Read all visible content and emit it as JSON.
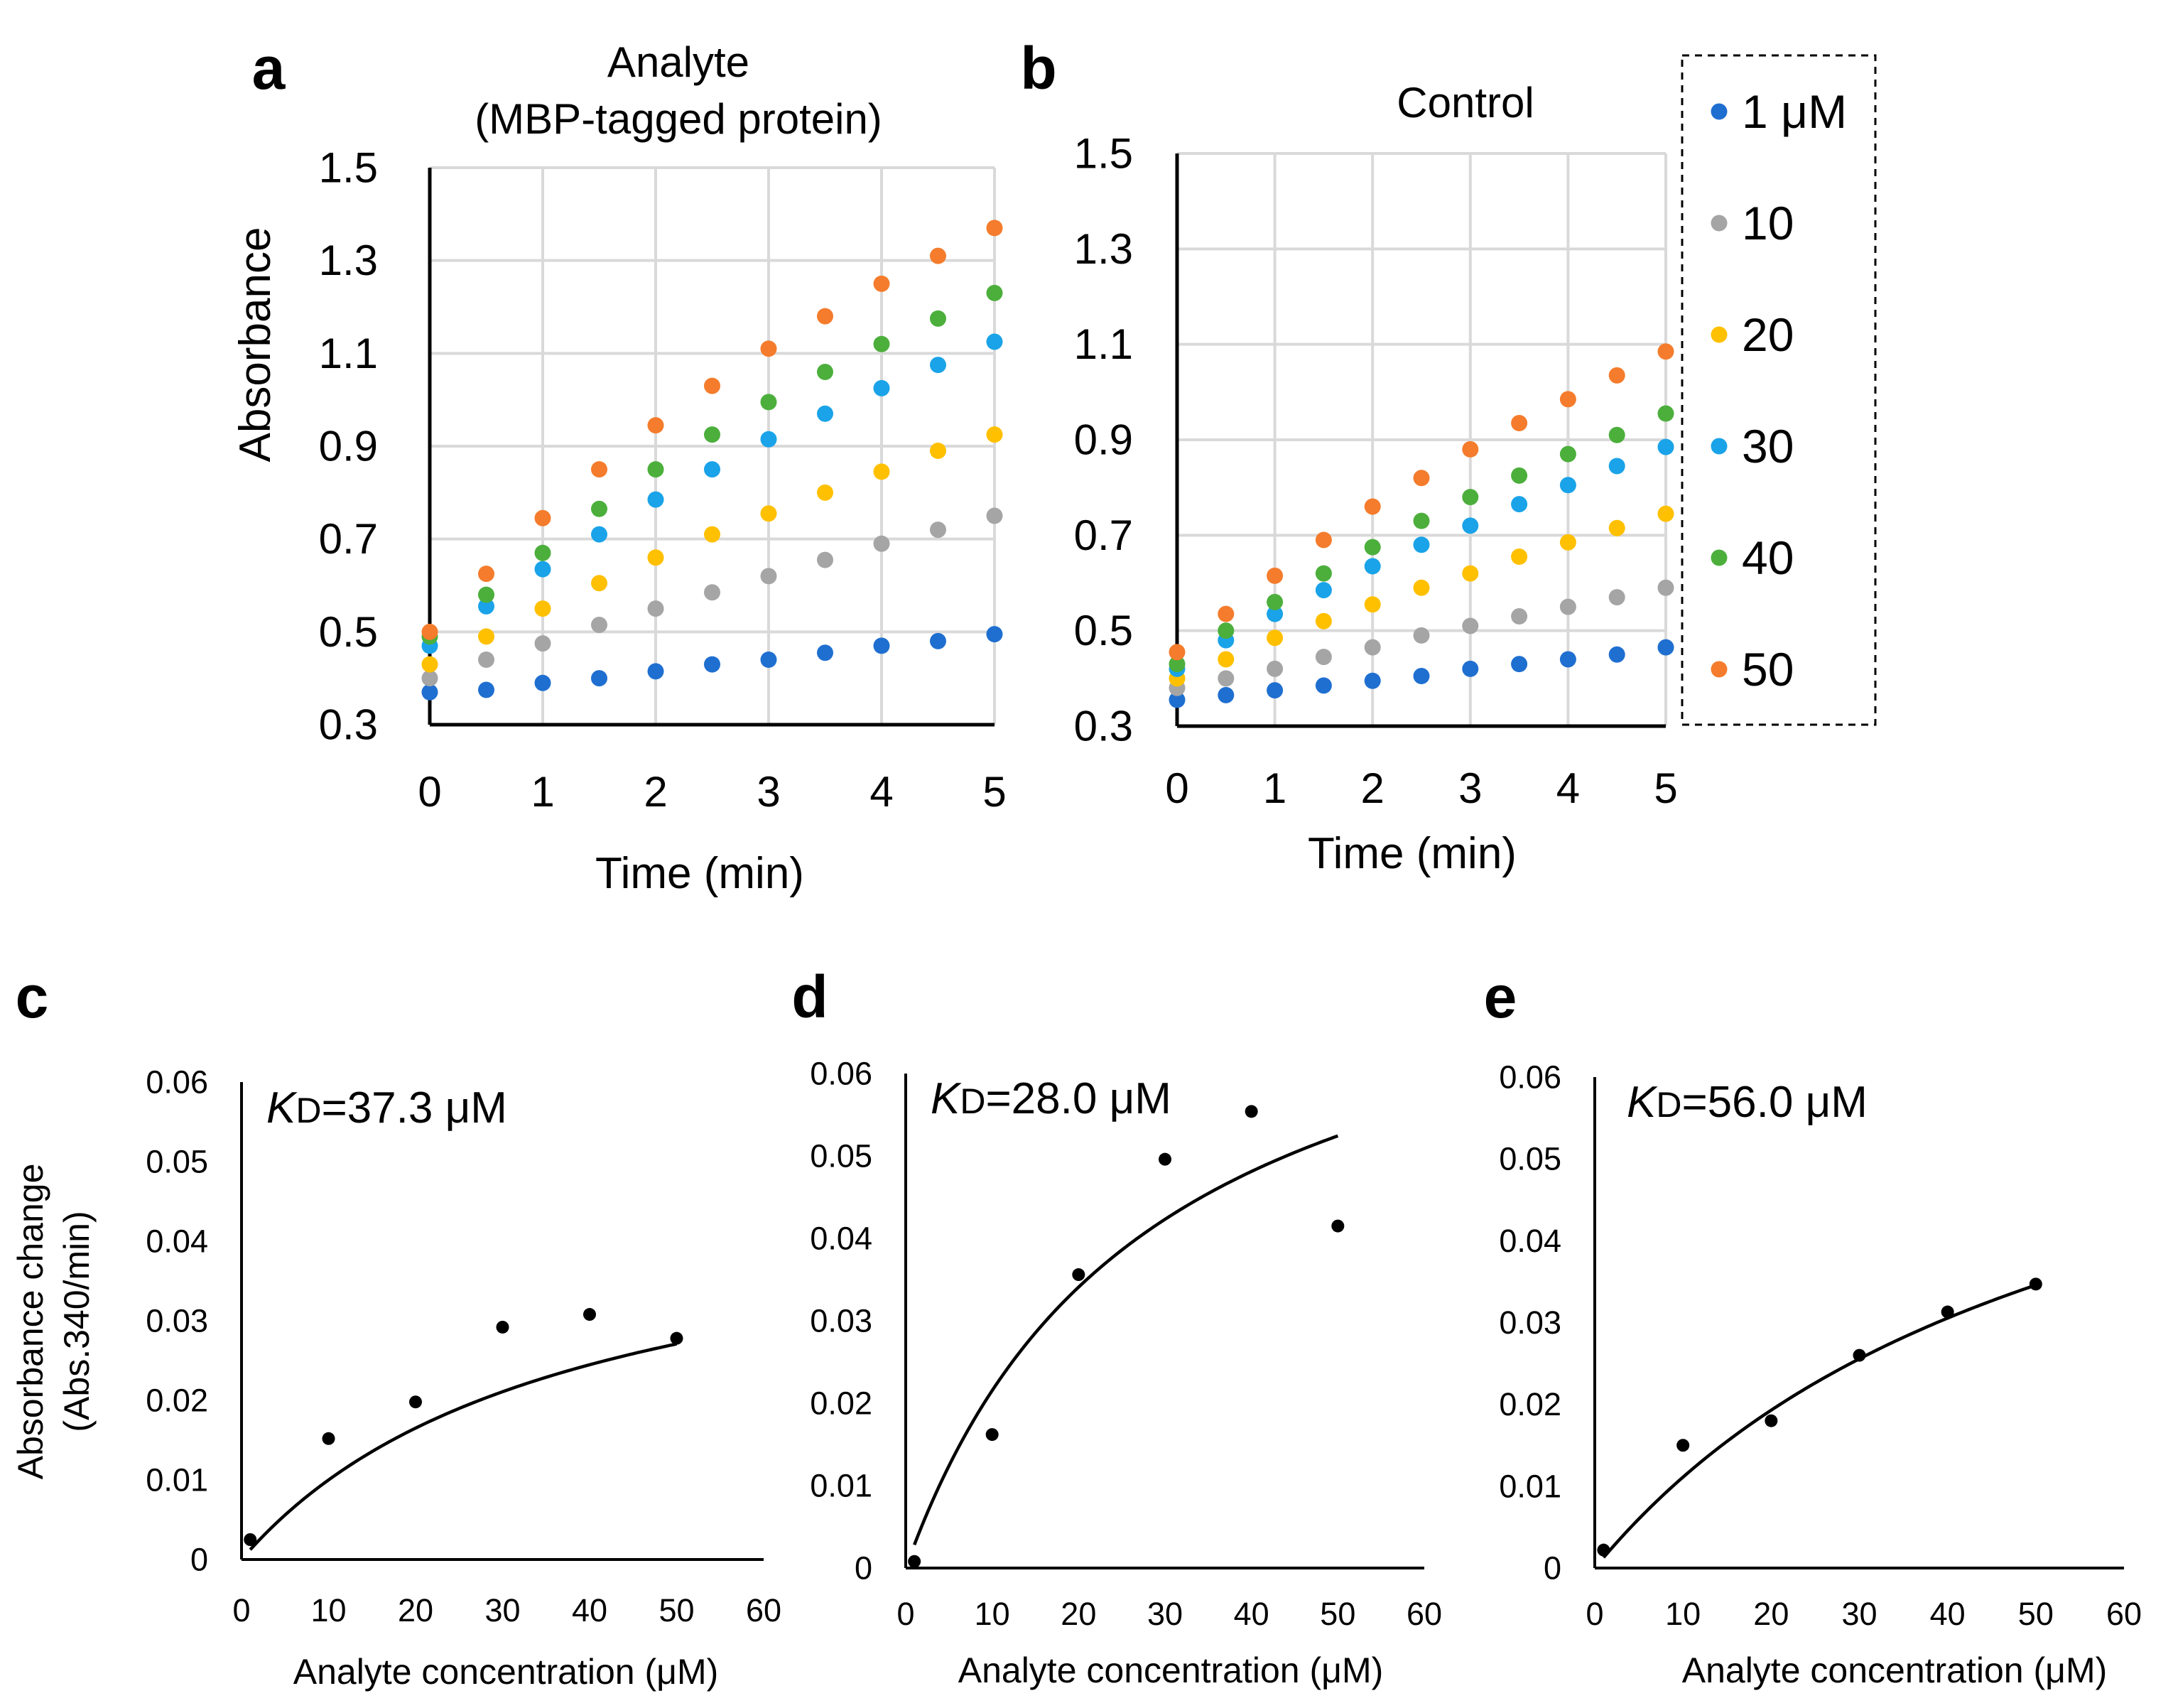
{
  "chart_data": [
    {
      "panel": "a",
      "type": "scatter",
      "title": "Analyte\n(MBP-tagged protein)",
      "xlabel": "Time (min)",
      "ylabel": "Absorbance",
      "xlim": [
        0,
        5
      ],
      "ylim": [
        0.3,
        1.5
      ],
      "xticks": [
        "0",
        "1",
        "2",
        "3",
        "4",
        "5"
      ],
      "yticks": [
        "0.3",
        "0.5",
        "0.7",
        "0.9",
        "1.1",
        "1.3",
        "1.5"
      ],
      "grid": true,
      "x": [
        0,
        0.5,
        1,
        1.5,
        2,
        2.5,
        3,
        3.5,
        4,
        4.5,
        5
      ],
      "series": [
        {
          "name": "1 μM",
          "color": "#1f6fd0",
          "values": [
            0.37,
            0.375,
            0.39,
            0.4,
            0.415,
            0.43,
            0.44,
            0.455,
            0.47,
            0.48,
            0.495
          ]
        },
        {
          "name": "10",
          "color": "#a5a5a5",
          "values": [
            0.4,
            0.44,
            0.475,
            0.515,
            0.55,
            0.585,
            0.62,
            0.655,
            0.69,
            0.72,
            0.75
          ]
        },
        {
          "name": "20",
          "color": "#ffc000",
          "values": [
            0.43,
            0.49,
            0.55,
            0.605,
            0.66,
            0.71,
            0.755,
            0.8,
            0.845,
            0.89,
            0.925
          ]
        },
        {
          "name": "30",
          "color": "#1aa3e8",
          "values": [
            0.47,
            0.555,
            0.635,
            0.71,
            0.785,
            0.85,
            0.915,
            0.97,
            1.025,
            1.075,
            1.125
          ]
        },
        {
          "name": "40",
          "color": "#4caf3c",
          "values": [
            0.49,
            0.58,
            0.67,
            0.765,
            0.85,
            0.925,
            0.995,
            1.06,
            1.12,
            1.175,
            1.23
          ]
        },
        {
          "name": "50",
          "color": "#f47c2c",
          "values": [
            0.5,
            0.625,
            0.745,
            0.85,
            0.945,
            1.03,
            1.11,
            1.18,
            1.25,
            1.31,
            1.37
          ]
        }
      ]
    },
    {
      "panel": "b",
      "type": "scatter",
      "title": "Control",
      "xlabel": "Time (min)",
      "ylabel": "",
      "xlim": [
        0,
        5
      ],
      "ylim": [
        0.3,
        1.5
      ],
      "xticks": [
        "0",
        "1",
        "2",
        "3",
        "4",
        "5"
      ],
      "yticks": [
        "0.3",
        "0.5",
        "0.7",
        "0.9",
        "1.1",
        "1.3",
        "1.5"
      ],
      "grid": true,
      "x": [
        0,
        0.5,
        1,
        1.5,
        2,
        2.5,
        3,
        3.5,
        4,
        4.5,
        5
      ],
      "series": [
        {
          "name": "1 μM",
          "color": "#1f6fd0",
          "values": [
            0.355,
            0.365,
            0.375,
            0.385,
            0.395,
            0.405,
            0.42,
            0.43,
            0.44,
            0.45,
            0.465
          ]
        },
        {
          "name": "10",
          "color": "#a5a5a5",
          "values": [
            0.38,
            0.4,
            0.42,
            0.445,
            0.465,
            0.49,
            0.51,
            0.53,
            0.55,
            0.57,
            0.59
          ]
        },
        {
          "name": "20",
          "color": "#ffc000",
          "values": [
            0.4,
            0.44,
            0.485,
            0.52,
            0.555,
            0.59,
            0.62,
            0.655,
            0.685,
            0.715,
            0.745
          ]
        },
        {
          "name": "30",
          "color": "#1aa3e8",
          "values": [
            0.42,
            0.48,
            0.535,
            0.585,
            0.635,
            0.68,
            0.72,
            0.765,
            0.805,
            0.845,
            0.885
          ]
        },
        {
          "name": "40",
          "color": "#4caf3c",
          "values": [
            0.43,
            0.5,
            0.56,
            0.62,
            0.675,
            0.73,
            0.78,
            0.825,
            0.87,
            0.91,
            0.955
          ]
        },
        {
          "name": "50",
          "color": "#f47c2c",
          "values": [
            0.455,
            0.535,
            0.615,
            0.69,
            0.76,
            0.82,
            0.88,
            0.935,
            0.985,
            1.035,
            1.085
          ]
        }
      ]
    },
    {
      "panel": "c",
      "type": "scatter",
      "annotation_pre": "K",
      "annotation_sub": "D",
      "annotation_post": "=37.3 μM",
      "xlabel": "Analyte concentration (μM)",
      "ylabel": "Absorbance change\n(Abs.340/min)",
      "xlim": [
        0,
        60
      ],
      "ylim": [
        0,
        0.06
      ],
      "xticks": [
        "0",
        "10",
        "20",
        "30",
        "40",
        "50",
        "60"
      ],
      "yticks": [
        "0",
        "0.01",
        "0.02",
        "0.03",
        "0.04",
        "0.05",
        "0.06"
      ],
      "grid": false,
      "points": {
        "x": [
          1,
          10,
          20,
          30,
          40,
          50
        ],
        "y": [
          0.0025,
          0.0152,
          0.0198,
          0.0292,
          0.0308,
          0.0278
        ]
      },
      "fit": {
        "vmax": 0.0473,
        "kd": 37.3,
        "x_range": [
          1,
          50
        ]
      }
    },
    {
      "panel": "d",
      "type": "scatter",
      "annotation_pre": "K",
      "annotation_sub": "D",
      "annotation_post": "=28.0 μM",
      "xlabel": "Analyte concentration (μM)",
      "ylabel": "",
      "xlim": [
        0,
        60
      ],
      "ylim": [
        0,
        0.06
      ],
      "xticks": [
        "0",
        "10",
        "20",
        "30",
        "40",
        "50",
        "60"
      ],
      "yticks": [
        "0",
        "0.01",
        "0.02",
        "0.03",
        "0.04",
        "0.05",
        "0.06"
      ],
      "grid": false,
      "points": {
        "x": [
          1,
          10,
          20,
          30,
          40,
          50
        ],
        "y": [
          0.0008,
          0.0162,
          0.0356,
          0.0496,
          0.0554,
          0.0415
        ]
      },
      "fit": {
        "vmax": 0.0818,
        "kd": 28.0,
        "x_range": [
          1,
          50
        ]
      }
    },
    {
      "panel": "e",
      "type": "scatter",
      "annotation_pre": "K",
      "annotation_sub": "D",
      "annotation_post": "=56.0 μM",
      "xlabel": "Analyte concentration (μM)",
      "ylabel": "",
      "xlim": [
        0,
        60
      ],
      "ylim": [
        0,
        0.06
      ],
      "xticks": [
        "0",
        "10",
        "20",
        "30",
        "40",
        "50",
        "60"
      ],
      "yticks": [
        "0",
        "0.01",
        "0.02",
        "0.03",
        "0.04",
        "0.05",
        "0.06"
      ],
      "grid": false,
      "points": {
        "x": [
          1,
          10,
          20,
          30,
          40,
          50
        ],
        "y": [
          0.0022,
          0.015,
          0.018,
          0.026,
          0.0313,
          0.0347
        ]
      },
      "fit": {
        "vmax": 0.0733,
        "kd": 56.0,
        "x_range": [
          1,
          50
        ]
      }
    }
  ],
  "legend": {
    "placement": "right of panel b",
    "border_style": "dashed",
    "items": [
      {
        "label": "1 μM",
        "color": "#1f6fd0"
      },
      {
        "label": "10",
        "color": "#a5a5a5"
      },
      {
        "label": "20",
        "color": "#ffc000"
      },
      {
        "label": "30",
        "color": "#1aa3e8"
      },
      {
        "label": "40",
        "color": "#4caf3c"
      },
      {
        "label": "50",
        "color": "#f47c2c"
      }
    ]
  }
}
